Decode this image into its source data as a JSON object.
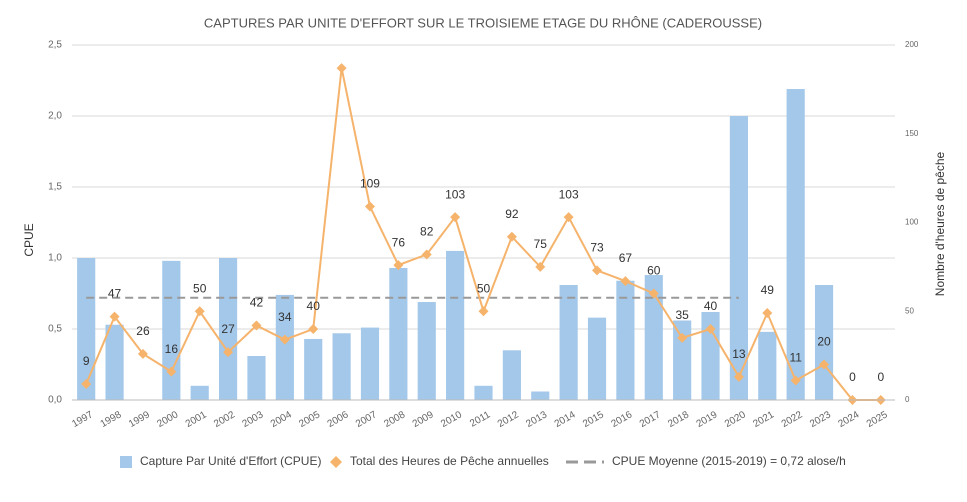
{
  "chart_data": {
    "type": "bar-line",
    "title": "CAPTURES PAR UNITE D'EFFORT SUR LE TROISIEME ETAGE DU RHÔNE (CADEROUSSE)",
    "y_label": "CPUE",
    "y2_label": "Nombre d'heures de pêche",
    "categories": [
      "1997",
      "1998",
      "1999",
      "2000",
      "2001",
      "2002",
      "2003",
      "2004",
      "2005",
      "2006",
      "2007",
      "2008",
      "2009",
      "2010",
      "2011",
      "2012",
      "2013",
      "2014",
      "2015",
      "2016",
      "2017",
      "2018",
      "2019",
      "2020",
      "2021",
      "2022",
      "2023",
      "2024",
      "2025"
    ],
    "ylim": [
      0,
      2.5
    ],
    "yticks": [
      {
        "value": 0,
        "label": "0,0"
      },
      {
        "value": 0.5,
        "label": "0,5"
      },
      {
        "value": 1,
        "label": "1,0"
      },
      {
        "value": 1.5,
        "label": "1,5"
      },
      {
        "value": 2,
        "label": "2,0"
      },
      {
        "value": 2.5,
        "label": "2,5"
      }
    ],
    "y2lim": [
      0,
      200
    ],
    "y2ticks": [
      0,
      50,
      100,
      150,
      200
    ],
    "grid": true,
    "legend": "bottom",
    "series": [
      {
        "name": "Capture Par Unité d'Effort (CPUE)",
        "kind": "bar",
        "color": "#a4c8ea",
        "values": [
          1.0,
          0.53,
          0,
          0.98,
          0.1,
          1.0,
          0.31,
          0.74,
          0.43,
          0.47,
          0.51,
          0.93,
          0.69,
          1.05,
          0.1,
          0.35,
          0.06,
          0.81,
          0.58,
          0.84,
          0.88,
          0.56,
          0.62,
          2.0,
          0.48,
          2.19,
          0.81,
          0,
          0
        ]
      },
      {
        "name": "Total des Heures de Pêche annuelles",
        "kind": "line",
        "axis": "y2",
        "color": "#f5b36c",
        "values": [
          9,
          47,
          26,
          16,
          50,
          27,
          42,
          34,
          40,
          187,
          109,
          76,
          82,
          103,
          50,
          92,
          75,
          103,
          73,
          67,
          60,
          35,
          40,
          13,
          49,
          11,
          20,
          0,
          0
        ],
        "value_labels": [
          "9",
          "47",
          "26",
          "16",
          "50",
          "27",
          "42",
          "34",
          "40",
          null,
          "109",
          "76",
          "82",
          "103",
          "50",
          "92",
          "75",
          "103",
          "73",
          "67",
          "60",
          "35",
          "40",
          "13",
          "49",
          "11",
          "20",
          "0",
          "0"
        ]
      },
      {
        "name": "CPUE Moyenne (2015-2019) = 0,72 alose/h",
        "kind": "dashed",
        "color": "#999999",
        "values": [
          0.72,
          0.72,
          0.72,
          0.72,
          0.72,
          0.72,
          0.72,
          0.72,
          0.72,
          0.72,
          0.72,
          0.72,
          0.72,
          0.72,
          0.72,
          0.72,
          0.72,
          0.72,
          0.72,
          0.72,
          0.72,
          0.72,
          0.72,
          0.72,
          null,
          null,
          null,
          null,
          null
        ]
      }
    ]
  }
}
